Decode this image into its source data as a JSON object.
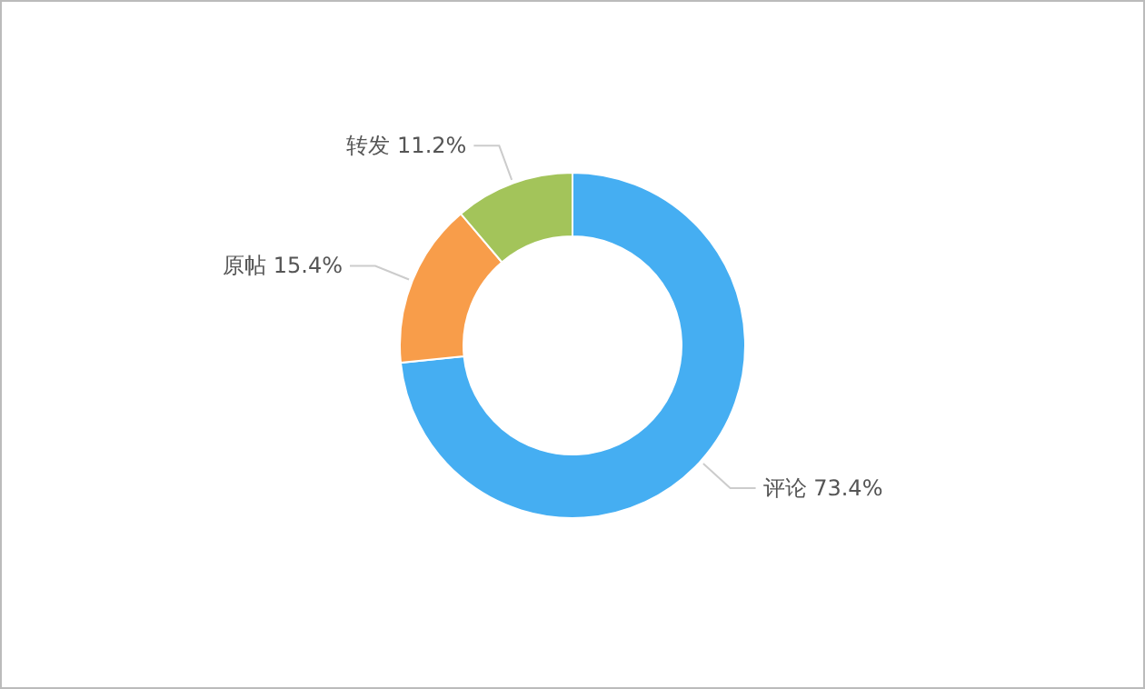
{
  "chart_data": {
    "type": "donut",
    "categories": [
      "评论",
      "原帖",
      "转发"
    ],
    "values": [
      73.4,
      15.4,
      11.2
    ],
    "colors": [
      "#45aef2",
      "#f89d4a",
      "#a3c45a"
    ],
    "value_labels": [
      "73.4%",
      "15.4%",
      "11.2%"
    ]
  }
}
